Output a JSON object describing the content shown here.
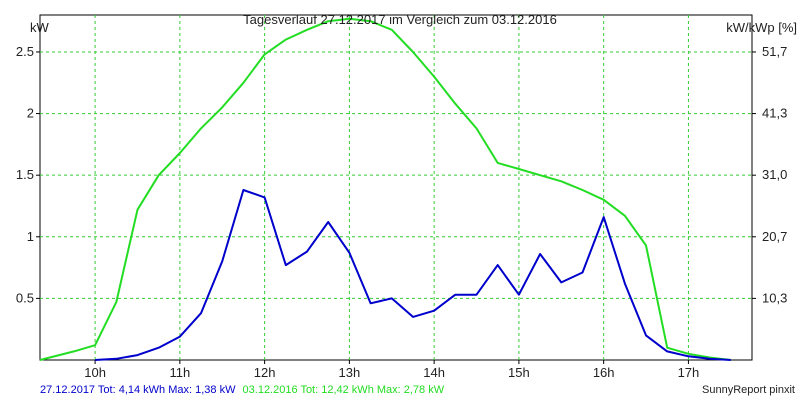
{
  "chart_data": {
    "type": "line",
    "title": "Tagesverlauf 27.12.2017 im Vergleich zum 03.12.2016",
    "ylabel_left": "kW",
    "ylabel_right": "kW/kWp [%]",
    "grid": true,
    "xlim": [
      9.35,
      17.75
    ],
    "ylim": [
      0,
      2.8
    ],
    "x_ticks": [
      {
        "value": 10,
        "label": "10h"
      },
      {
        "value": 11,
        "label": "11h"
      },
      {
        "value": 12,
        "label": "12h"
      },
      {
        "value": 13,
        "label": "13h"
      },
      {
        "value": 14,
        "label": "14h"
      },
      {
        "value": 15,
        "label": "15h"
      },
      {
        "value": 16,
        "label": "16h"
      },
      {
        "value": 17,
        "label": "17h"
      }
    ],
    "y_ticks_left": [
      {
        "value": 0.5,
        "label": "0.5"
      },
      {
        "value": 1,
        "label": "1"
      },
      {
        "value": 1.5,
        "label": "1.5"
      },
      {
        "value": 2,
        "label": "2"
      },
      {
        "value": 2.5,
        "label": "2.5"
      }
    ],
    "y_ticks_right": [
      {
        "value": 0.5,
        "label": "10,3"
      },
      {
        "value": 1,
        "label": "20,7"
      },
      {
        "value": 1.5,
        "label": "31,0"
      },
      {
        "value": 2,
        "label": "41,3"
      },
      {
        "value": 2.5,
        "label": "51,7"
      }
    ],
    "series": [
      {
        "name": "03.12.2016",
        "color": "#22dd22",
        "points": [
          [
            9.35,
            0.0
          ],
          [
            9.75,
            0.07
          ],
          [
            10.0,
            0.12
          ],
          [
            10.25,
            0.47
          ],
          [
            10.5,
            1.22
          ],
          [
            10.75,
            1.5
          ],
          [
            11.0,
            1.68
          ],
          [
            11.25,
            1.88
          ],
          [
            11.5,
            2.05
          ],
          [
            11.75,
            2.25
          ],
          [
            12.0,
            2.48
          ],
          [
            12.25,
            2.6
          ],
          [
            12.5,
            2.68
          ],
          [
            12.75,
            2.75
          ],
          [
            13.0,
            2.77
          ],
          [
            13.25,
            2.75
          ],
          [
            13.5,
            2.68
          ],
          [
            13.75,
            2.5
          ],
          [
            14.0,
            2.3
          ],
          [
            14.25,
            2.08
          ],
          [
            14.5,
            1.88
          ],
          [
            14.75,
            1.6
          ],
          [
            15.0,
            1.55
          ],
          [
            15.25,
            1.5
          ],
          [
            15.5,
            1.45
          ],
          [
            15.75,
            1.38
          ],
          [
            16.0,
            1.3
          ],
          [
            16.25,
            1.17
          ],
          [
            16.5,
            0.93
          ],
          [
            16.75,
            0.1
          ],
          [
            17.0,
            0.05
          ],
          [
            17.25,
            0.02
          ],
          [
            17.5,
            0.0
          ]
        ]
      },
      {
        "name": "27.12.2017",
        "color": "#0000cc",
        "points": [
          [
            10.0,
            0.0
          ],
          [
            10.25,
            0.01
          ],
          [
            10.5,
            0.04
          ],
          [
            10.75,
            0.1
          ],
          [
            11.0,
            0.19
          ],
          [
            11.25,
            0.38
          ],
          [
            11.5,
            0.8
          ],
          [
            11.75,
            1.38
          ],
          [
            12.0,
            1.32
          ],
          [
            12.25,
            0.77
          ],
          [
            12.5,
            0.88
          ],
          [
            12.75,
            1.12
          ],
          [
            13.0,
            0.87
          ],
          [
            13.25,
            0.46
          ],
          [
            13.5,
            0.5
          ],
          [
            13.75,
            0.35
          ],
          [
            14.0,
            0.4
          ],
          [
            14.25,
            0.53
          ],
          [
            14.5,
            0.53
          ],
          [
            14.75,
            0.77
          ],
          [
            15.0,
            0.53
          ],
          [
            15.25,
            0.86
          ],
          [
            15.5,
            0.63
          ],
          [
            15.75,
            0.71
          ],
          [
            16.0,
            1.16
          ],
          [
            16.25,
            0.62
          ],
          [
            16.5,
            0.2
          ],
          [
            16.75,
            0.07
          ],
          [
            17.0,
            0.03
          ],
          [
            17.25,
            0.01
          ],
          [
            17.5,
            0.0
          ]
        ]
      }
    ]
  },
  "footer": {
    "series1_text": "27.12.2017 Tot: 4,14 kWh Max: 1,38 kW",
    "series1_color": "#0000cc",
    "series2_text": "03.12.2016 Tot: 12,42 kWh Max: 2,78 kW",
    "series2_color": "#22dd22",
    "credit": "SunnyReport pinxit"
  }
}
